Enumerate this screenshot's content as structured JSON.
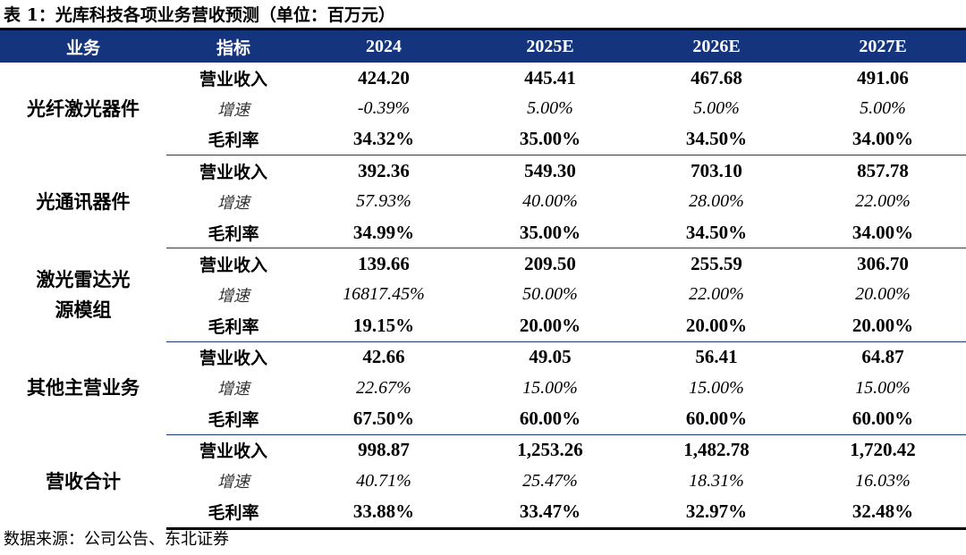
{
  "caption": "表 1：光库科技各项业务营收预测（单位：百万元）",
  "headers": [
    "业务",
    "指标",
    "2024",
    "2025E",
    "2026E",
    "2027E"
  ],
  "segments": [
    {
      "name": "光纤激光器件",
      "rows": [
        {
          "metric": "营业收入",
          "values": [
            "424.20",
            "445.41",
            "467.68",
            "491.06"
          ]
        },
        {
          "metric": "增速",
          "values": [
            "-0.39%",
            "5.00%",
            "5.00%",
            "5.00%"
          ]
        },
        {
          "metric": "毛利率",
          "values": [
            "34.32%",
            "35.00%",
            "34.50%",
            "34.00%"
          ]
        }
      ]
    },
    {
      "name": "光通讯器件",
      "rows": [
        {
          "metric": "营业收入",
          "values": [
            "392.36",
            "549.30",
            "703.10",
            "857.78"
          ]
        },
        {
          "metric": "增速",
          "values": [
            "57.93%",
            "40.00%",
            "28.00%",
            "22.00%"
          ]
        },
        {
          "metric": "毛利率",
          "values": [
            "34.99%",
            "35.00%",
            "34.50%",
            "34.00%"
          ]
        }
      ]
    },
    {
      "name": "激光雷达光源模组",
      "rows": [
        {
          "metric": "营业收入",
          "values": [
            "139.66",
            "209.50",
            "255.59",
            "306.70"
          ]
        },
        {
          "metric": "增速",
          "values": [
            "16817.45%",
            "50.00%",
            "22.00%",
            "20.00%"
          ]
        },
        {
          "metric": "毛利率",
          "values": [
            "19.15%",
            "20.00%",
            "20.00%",
            "20.00%"
          ]
        }
      ]
    },
    {
      "name": "其他主营业务",
      "rows": [
        {
          "metric": "营业收入",
          "values": [
            "42.66",
            "49.05",
            "56.41",
            "64.87"
          ]
        },
        {
          "metric": "增速",
          "values": [
            "22.67%",
            "15.00%",
            "15.00%",
            "15.00%"
          ]
        },
        {
          "metric": "毛利率",
          "values": [
            "67.50%",
            "60.00%",
            "60.00%",
            "60.00%"
          ]
        }
      ]
    },
    {
      "name": "营收合计",
      "rows": [
        {
          "metric": "营业收入",
          "values": [
            "998.87",
            "1,253.26",
            "1,482.78",
            "1,720.42"
          ]
        },
        {
          "metric": "增速",
          "values": [
            "40.71%",
            "25.47%",
            "18.31%",
            "16.03%"
          ]
        },
        {
          "metric": "毛利率",
          "values": [
            "33.88%",
            "33.47%",
            "32.97%",
            "32.48%"
          ]
        }
      ]
    }
  ],
  "source": "数据来源：公司公告、东北证券",
  "colors": {
    "header_bg": "#14357d",
    "header_text": "#ffffff",
    "rule": "#000000"
  }
}
